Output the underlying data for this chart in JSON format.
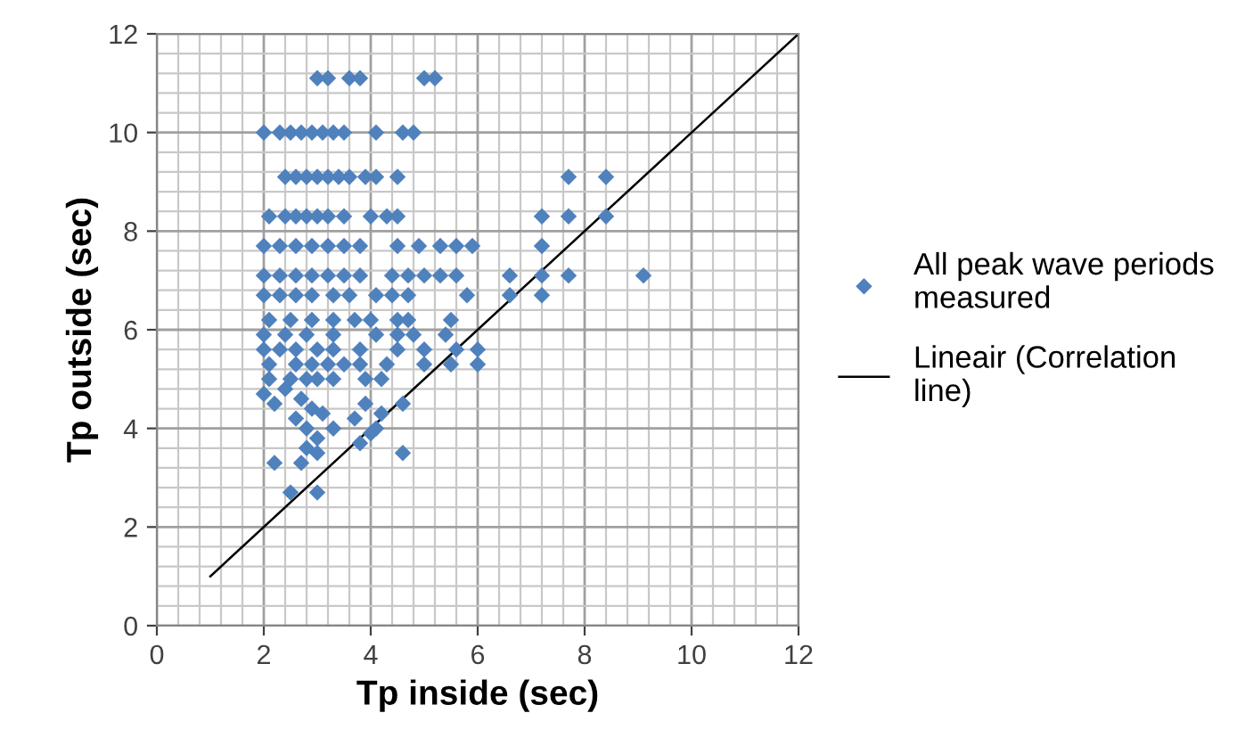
{
  "chart_data": {
    "type": "scatter",
    "xlabel": "Tp inside (sec)",
    "ylabel": "Tp outside (sec)",
    "xlim": [
      0,
      12
    ],
    "ylim": [
      0,
      12
    ],
    "xticks": [
      0,
      {
        "value": 0.4,
        "label": null
      },
      {
        "value": 0.8,
        "label": null
      },
      {
        "value": 1.2,
        "label": null
      },
      {
        "value": 1.6,
        "label": null
      },
      2,
      {
        "value": 2.4,
        "label": null
      },
      {
        "value": 2.8,
        "label": null
      },
      {
        "value": 3.2,
        "label": null
      },
      {
        "value": 3.6,
        "label": null
      },
      4,
      {
        "value": 4.4,
        "label": null
      },
      {
        "value": 4.8,
        "label": null
      },
      {
        "value": 5.2,
        "label": null
      },
      {
        "value": 5.6,
        "label": null
      },
      6,
      {
        "value": 6.4,
        "label": null
      },
      {
        "value": 6.8,
        "label": null
      },
      {
        "value": 7.2,
        "label": null
      },
      {
        "value": 7.6,
        "label": null
      },
      8,
      {
        "value": 8.4,
        "label": null
      },
      {
        "value": 8.8,
        "label": null
      },
      {
        "value": 9.2,
        "label": null
      },
      {
        "value": 9.6,
        "label": null
      },
      10,
      {
        "value": 10.4,
        "label": null
      },
      {
        "value": 10.8,
        "label": null
      },
      {
        "value": 11.2,
        "label": null
      },
      {
        "value": 11.6,
        "label": null
      },
      12
    ],
    "yticks": [
      0,
      {
        "value": 0.4,
        "label": null
      },
      {
        "value": 0.8,
        "label": null
      },
      {
        "value": 1.2,
        "label": null
      },
      {
        "value": 1.6,
        "label": null
      },
      2,
      {
        "value": 2.4,
        "label": null
      },
      {
        "value": 2.8,
        "label": null
      },
      {
        "value": 3.2,
        "label": null
      },
      {
        "value": 3.6,
        "label": null
      },
      4,
      {
        "value": 4.4,
        "label": null
      },
      {
        "value": 4.8,
        "label": null
      },
      {
        "value": 5.2,
        "label": null
      },
      {
        "value": 5.6,
        "label": null
      },
      6,
      {
        "value": 6.4,
        "label": null
      },
      {
        "value": 6.8,
        "label": null
      },
      {
        "value": 7.2,
        "label": null
      },
      {
        "value": 7.6,
        "label": null
      },
      8,
      {
        "value": 8.4,
        "label": null
      },
      {
        "value": 8.8,
        "label": null
      },
      {
        "value": 9.2,
        "label": null
      },
      {
        "value": 9.6,
        "label": null
      },
      10,
      {
        "value": 10.4,
        "label": null
      },
      {
        "value": 10.8,
        "label": null
      },
      {
        "value": 11.2,
        "label": null
      },
      {
        "value": 11.6,
        "label": null
      },
      12
    ],
    "grid": true,
    "legend": "right",
    "series": [
      {
        "name": "All peak wave periods measured",
        "marker": "diamond",
        "color": "#4f81bd",
        "x": [
          3.0,
          3.2,
          3.6,
          3.8,
          5.0,
          5.2,
          2.0,
          2.3,
          2.5,
          2.7,
          2.9,
          3.1,
          3.3,
          3.5,
          4.1,
          4.6,
          4.8,
          2.4,
          2.6,
          2.8,
          3.0,
          3.2,
          3.4,
          3.6,
          3.9,
          4.1,
          4.5,
          7.7,
          8.4,
          2.1,
          2.4,
          2.6,
          2.8,
          3.0,
          3.2,
          3.5,
          4.0,
          4.3,
          4.5,
          7.2,
          7.7,
          8.4,
          2.0,
          2.3,
          2.6,
          2.9,
          3.2,
          3.5,
          3.8,
          4.5,
          4.9,
          5.3,
          5.6,
          5.9,
          7.2,
          2.0,
          2.3,
          2.6,
          2.9,
          3.2,
          3.5,
          3.8,
          4.4,
          4.7,
          5.0,
          5.3,
          5.6,
          6.6,
          7.2,
          7.7,
          9.1,
          2.0,
          2.3,
          2.6,
          2.9,
          3.3,
          3.6,
          4.1,
          4.4,
          4.7,
          5.8,
          6.6,
          7.2,
          2.1,
          2.5,
          2.9,
          3.3,
          3.7,
          4.0,
          4.5,
          4.7,
          5.5,
          2.0,
          2.4,
          2.8,
          3.3,
          4.1,
          4.5,
          4.8,
          5.4,
          2.0,
          2.3,
          2.6,
          3.0,
          3.3,
          3.8,
          4.5,
          5.0,
          5.6,
          6.0,
          2.1,
          2.6,
          2.9,
          3.2,
          3.5,
          3.8,
          4.3,
          5.0,
          5.5,
          6.0,
          2.1,
          2.5,
          2.8,
          3.0,
          3.3,
          3.9,
          4.2,
          2.2,
          2.7,
          2.9,
          3.1,
          2.6,
          2.8,
          3.0,
          3.3,
          3.7,
          3.9,
          4.1,
          3.8,
          4.0,
          4.2,
          2.2,
          2.7,
          2.8,
          3.0,
          2.5,
          3.0,
          4.6,
          4.6,
          2.4,
          2.0
        ],
        "values": [
          11.1,
          11.1,
          11.1,
          11.1,
          11.1,
          11.1,
          10.0,
          10.0,
          10.0,
          10.0,
          10.0,
          10.0,
          10.0,
          10.0,
          10.0,
          10.0,
          10.0,
          9.1,
          9.1,
          9.1,
          9.1,
          9.1,
          9.1,
          9.1,
          9.1,
          9.1,
          9.1,
          9.1,
          9.1,
          8.3,
          8.3,
          8.3,
          8.3,
          8.3,
          8.3,
          8.3,
          8.3,
          8.3,
          8.3,
          8.3,
          8.3,
          8.3,
          7.7,
          7.7,
          7.7,
          7.7,
          7.7,
          7.7,
          7.7,
          7.7,
          7.7,
          7.7,
          7.7,
          7.7,
          7.7,
          7.1,
          7.1,
          7.1,
          7.1,
          7.1,
          7.1,
          7.1,
          7.1,
          7.1,
          7.1,
          7.1,
          7.1,
          7.1,
          7.1,
          7.1,
          7.1,
          6.7,
          6.7,
          6.7,
          6.7,
          6.7,
          6.7,
          6.7,
          6.7,
          6.7,
          6.7,
          6.7,
          6.7,
          6.2,
          6.2,
          6.2,
          6.2,
          6.2,
          6.2,
          6.2,
          6.2,
          6.2,
          5.9,
          5.9,
          5.9,
          5.9,
          5.9,
          5.9,
          5.9,
          5.9,
          5.6,
          5.6,
          5.6,
          5.6,
          5.6,
          5.6,
          5.6,
          5.6,
          5.6,
          5.6,
          5.3,
          5.3,
          5.3,
          5.3,
          5.3,
          5.3,
          5.3,
          5.3,
          5.3,
          5.3,
          5.0,
          5.0,
          5.0,
          5.0,
          5.0,
          5.0,
          5.0,
          4.5,
          4.6,
          4.4,
          4.3,
          4.2,
          4.0,
          3.8,
          4.0,
          4.2,
          4.5,
          4.0,
          3.7,
          3.9,
          4.3,
          3.3,
          3.3,
          3.6,
          3.5,
          2.7,
          2.7,
          3.5,
          4.5,
          4.8,
          4.7
        ]
      },
      {
        "name": "Lineair (Correlation line)",
        "type": "line",
        "marker": "none",
        "line_style": "solid",
        "color": "#000000",
        "x": [
          1,
          12
        ],
        "values": [
          1,
          12
        ]
      }
    ]
  }
}
